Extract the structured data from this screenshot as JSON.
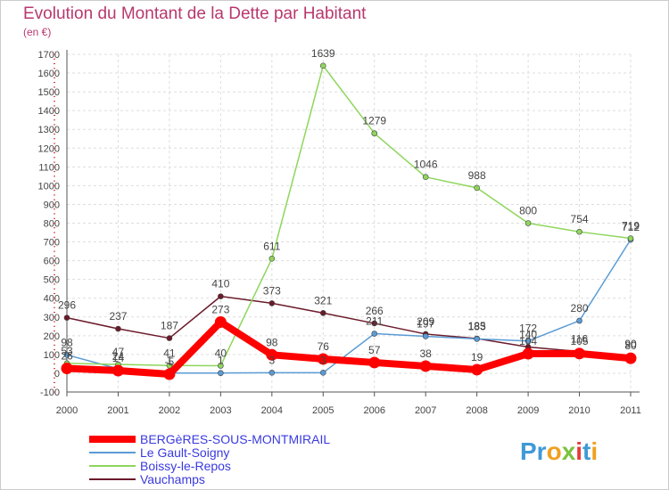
{
  "chart_data": {
    "type": "line",
    "title": "Evolution du Montant de la Dette par Habitant",
    "subtitle": "(en €)",
    "categories": [
      "2000",
      "2001",
      "2002",
      "2003",
      "2004",
      "2005",
      "2006",
      "2007",
      "2008",
      "2009",
      "2010",
      "2011"
    ],
    "ylim": [
      -100,
      1700
    ],
    "yticks": [
      -100,
      0,
      100,
      200,
      300,
      400,
      500,
      600,
      700,
      800,
      900,
      1000,
      1100,
      1200,
      1300,
      1400,
      1500,
      1600,
      1700
    ],
    "grid": true,
    "legend_position": "bottom-left",
    "series": [
      {
        "name": "BERGèRES-SOUS-MONTMIRAIL",
        "color": "#ff0000",
        "values": [
          26,
          14,
          -5,
          273,
          98,
          76,
          57,
          38,
          19,
          104,
          105,
          80
        ]
      },
      {
        "name": "Le Gault-Soigny",
        "color": "#5a9bd5",
        "values": [
          98,
          24,
          1,
          1,
          3,
          3,
          211,
          197,
          183,
          172,
          280,
          712
        ]
      },
      {
        "name": "Boissy-le-Repos",
        "color": "#8ed65c",
        "values": [
          53,
          47,
          41,
          40,
          611,
          1639,
          1279,
          1046,
          988,
          800,
          754,
          719
        ]
      },
      {
        "name": "Vauchamps",
        "color": "#6b1a2a",
        "values": [
          296,
          237,
          187,
          410,
          373,
          321,
          266,
          209,
          185,
          140,
          116,
          90
        ]
      }
    ]
  },
  "logo_text": "Proxiti"
}
